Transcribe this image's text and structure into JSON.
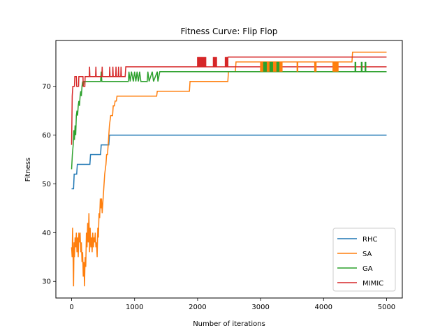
{
  "chart_data": {
    "type": "line",
    "title": "Fitness Curve: Flip Flop",
    "xlabel": "Number of iterations",
    "ylabel": "Fitness",
    "xlim": [
      -250,
      5250
    ],
    "ylim": [
      26.6,
      79.4
    ],
    "xticks": [
      0,
      1000,
      2000,
      3000,
      4000,
      5000
    ],
    "yticks": [
      30,
      40,
      50,
      60,
      70
    ],
    "grid": false,
    "legend_position": "lower-right",
    "series": [
      {
        "name": "RHC",
        "color": "#1f77b4",
        "points": [
          [
            0,
            49
          ],
          [
            30,
            49
          ],
          [
            40,
            52
          ],
          [
            80,
            52
          ],
          [
            90,
            54
          ],
          [
            290,
            54
          ],
          [
            300,
            56
          ],
          [
            460,
            56
          ],
          [
            470,
            58
          ],
          [
            590,
            58
          ],
          [
            600,
            60
          ],
          [
            5000,
            60
          ]
        ]
      },
      {
        "name": "SA",
        "color": "#ff7f0e",
        "points": [
          [
            0,
            37
          ],
          [
            8,
            35
          ],
          [
            15,
            41
          ],
          [
            22,
            36
          ],
          [
            30,
            29
          ],
          [
            38,
            38
          ],
          [
            45,
            35
          ],
          [
            55,
            39
          ],
          [
            65,
            37
          ],
          [
            75,
            40
          ],
          [
            85,
            36
          ],
          [
            95,
            39
          ],
          [
            105,
            35
          ],
          [
            115,
            40
          ],
          [
            125,
            38
          ],
          [
            135,
            40
          ],
          [
            145,
            36
          ],
          [
            155,
            38
          ],
          [
            165,
            34
          ],
          [
            175,
            36
          ],
          [
            185,
            31
          ],
          [
            195,
            34
          ],
          [
            205,
            29
          ],
          [
            215,
            35
          ],
          [
            225,
            33
          ],
          [
            235,
            40
          ],
          [
            245,
            37
          ],
          [
            255,
            42
          ],
          [
            265,
            38
          ],
          [
            275,
            44
          ],
          [
            285,
            36
          ],
          [
            295,
            41
          ],
          [
            305,
            37
          ],
          [
            315,
            39
          ],
          [
            325,
            36
          ],
          [
            335,
            40
          ],
          [
            345,
            37
          ],
          [
            355,
            39
          ],
          [
            365,
            38
          ],
          [
            375,
            40
          ],
          [
            385,
            37
          ],
          [
            395,
            38
          ],
          [
            405,
            35
          ],
          [
            415,
            41
          ],
          [
            425,
            39
          ],
          [
            435,
            44
          ],
          [
            445,
            43
          ],
          [
            455,
            47
          ],
          [
            465,
            45
          ],
          [
            475,
            47
          ],
          [
            485,
            44
          ],
          [
            495,
            46
          ],
          [
            505,
            48
          ],
          [
            515,
            50
          ],
          [
            525,
            52
          ],
          [
            535,
            53
          ],
          [
            545,
            54
          ],
          [
            555,
            56
          ],
          [
            570,
            56
          ],
          [
            580,
            58
          ],
          [
            590,
            60
          ],
          [
            600,
            62
          ],
          [
            610,
            63
          ],
          [
            620,
            64
          ],
          [
            650,
            64
          ],
          [
            660,
            66
          ],
          [
            680,
            66
          ],
          [
            690,
            67
          ],
          [
            710,
            67
          ],
          [
            720,
            68
          ],
          [
            1350,
            68
          ],
          [
            1360,
            69
          ],
          [
            1870,
            69
          ],
          [
            1880,
            71
          ],
          [
            2480,
            71
          ],
          [
            2490,
            73
          ],
          [
            2600,
            73
          ],
          [
            2610,
            75
          ],
          [
            4450,
            75
          ],
          [
            4460,
            77
          ],
          [
            5000,
            77
          ]
        ]
      },
      {
        "name": "GA",
        "color": "#2ca02c",
        "points": [
          [
            0,
            53
          ],
          [
            12,
            56
          ],
          [
            25,
            58
          ],
          [
            35,
            61
          ],
          [
            45,
            59
          ],
          [
            55,
            62
          ],
          [
            65,
            60
          ],
          [
            75,
            64
          ],
          [
            85,
            65
          ],
          [
            95,
            64
          ],
          [
            105,
            66
          ],
          [
            115,
            67
          ],
          [
            125,
            66
          ],
          [
            135,
            68
          ],
          [
            145,
            69
          ],
          [
            155,
            68
          ],
          [
            165,
            70
          ],
          [
            175,
            71
          ],
          [
            185,
            70
          ],
          [
            195,
            71
          ],
          [
            460,
            71
          ],
          [
            470,
            73
          ],
          [
            480,
            71
          ],
          [
            900,
            71
          ],
          [
            910,
            73
          ],
          [
            930,
            71
          ],
          [
            950,
            73
          ],
          [
            980,
            71
          ],
          [
            1000,
            73
          ],
          [
            1020,
            71
          ],
          [
            1040,
            73
          ],
          [
            1060,
            71
          ],
          [
            1080,
            73
          ],
          [
            1100,
            71
          ],
          [
            1200,
            71
          ],
          [
            1210,
            73
          ],
          [
            1230,
            71
          ],
          [
            1280,
            73
          ],
          [
            1300,
            71
          ],
          [
            1360,
            73
          ],
          [
            1370,
            71
          ],
          [
            1400,
            73
          ],
          [
            5000,
            73
          ]
        ]
      },
      {
        "name": "MIMIC",
        "color": "#d62728",
        "points": [
          [
            0,
            58
          ],
          [
            10,
            68
          ],
          [
            20,
            70
          ],
          [
            45,
            70
          ],
          [
            50,
            72
          ],
          [
            75,
            72
          ],
          [
            80,
            70
          ],
          [
            110,
            70
          ],
          [
            115,
            72
          ],
          [
            180,
            72
          ],
          [
            185,
            70
          ],
          [
            210,
            70
          ],
          [
            215,
            72
          ],
          [
            280,
            72
          ],
          [
            285,
            74
          ],
          [
            290,
            72
          ],
          [
            380,
            72
          ],
          [
            385,
            74
          ],
          [
            390,
            72
          ],
          [
            480,
            72
          ],
          [
            485,
            74
          ],
          [
            490,
            72
          ],
          [
            600,
            72
          ],
          [
            605,
            74
          ],
          [
            610,
            72
          ],
          [
            650,
            72
          ],
          [
            655,
            74
          ],
          [
            660,
            72
          ],
          [
            700,
            72
          ],
          [
            705,
            74
          ],
          [
            710,
            72
          ],
          [
            740,
            72
          ],
          [
            745,
            74
          ],
          [
            750,
            72
          ],
          [
            780,
            72
          ],
          [
            785,
            74
          ],
          [
            790,
            72
          ],
          [
            850,
            72
          ],
          [
            860,
            74
          ],
          [
            5000,
            74
          ]
        ]
      }
    ],
    "fluctuation_bands": [
      {
        "series": "MIMIC",
        "x_ranges": [
          [
            2000,
            2130
          ],
          [
            2250,
            2300
          ],
          [
            2440,
            2480
          ]
        ],
        "low": 74,
        "high": 76,
        "after": 76,
        "switch_x": 2480
      },
      {
        "series": "SA",
        "x_ranges": [
          [
            3000,
            3340
          ],
          [
            3580,
            3590
          ],
          [
            3860,
            3880
          ],
          [
            4150,
            4230
          ]
        ],
        "low": 73,
        "high": 75
      },
      {
        "series": "GA",
        "x_ranges": [
          [
            3050,
            3090
          ],
          [
            3150,
            3190
          ],
          [
            3260,
            3290
          ],
          [
            4500,
            4510
          ],
          [
            4600,
            4610
          ],
          [
            4660,
            4670
          ]
        ],
        "low": 73,
        "high": 75
      }
    ]
  }
}
